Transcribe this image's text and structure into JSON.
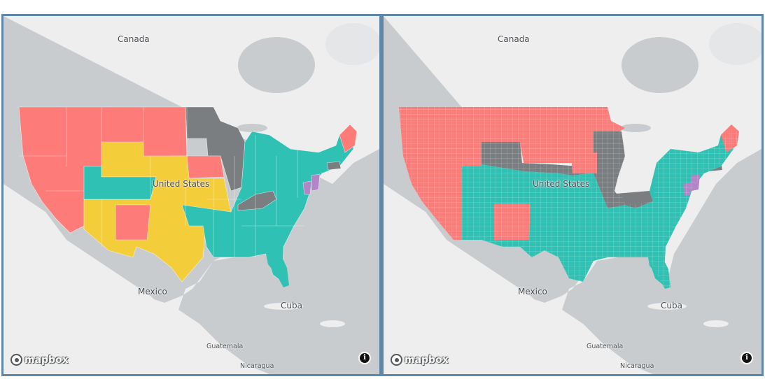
{
  "map_left": {
    "labels": {
      "canada": "Canada",
      "united_states": "United States",
      "mexico": "Mexico",
      "cuba": "Cuba",
      "guatemala": "Guatemala",
      "nicaragua": "Nicaragua"
    },
    "attribution": "mapbox",
    "info_icon": "info-icon",
    "granularity": "state"
  },
  "map_right": {
    "labels": {
      "canada": "Canada",
      "united_states": "United States",
      "mexico": "Mexico",
      "cuba": "Cuba",
      "guatemala": "Guatemala",
      "nicaragua": "Nicaragua"
    },
    "attribution": "mapbox",
    "info_icon": "info-icon",
    "granularity": "county"
  },
  "colors": {
    "salmon": "#fd7c79",
    "teal": "#2fc2b4",
    "yellow": "#f3cd3a",
    "gray": "#7a7e80",
    "purple": "#b384c8",
    "water": "#c8ccce",
    "land": "#eeeeee",
    "border": "#5f87a8"
  }
}
